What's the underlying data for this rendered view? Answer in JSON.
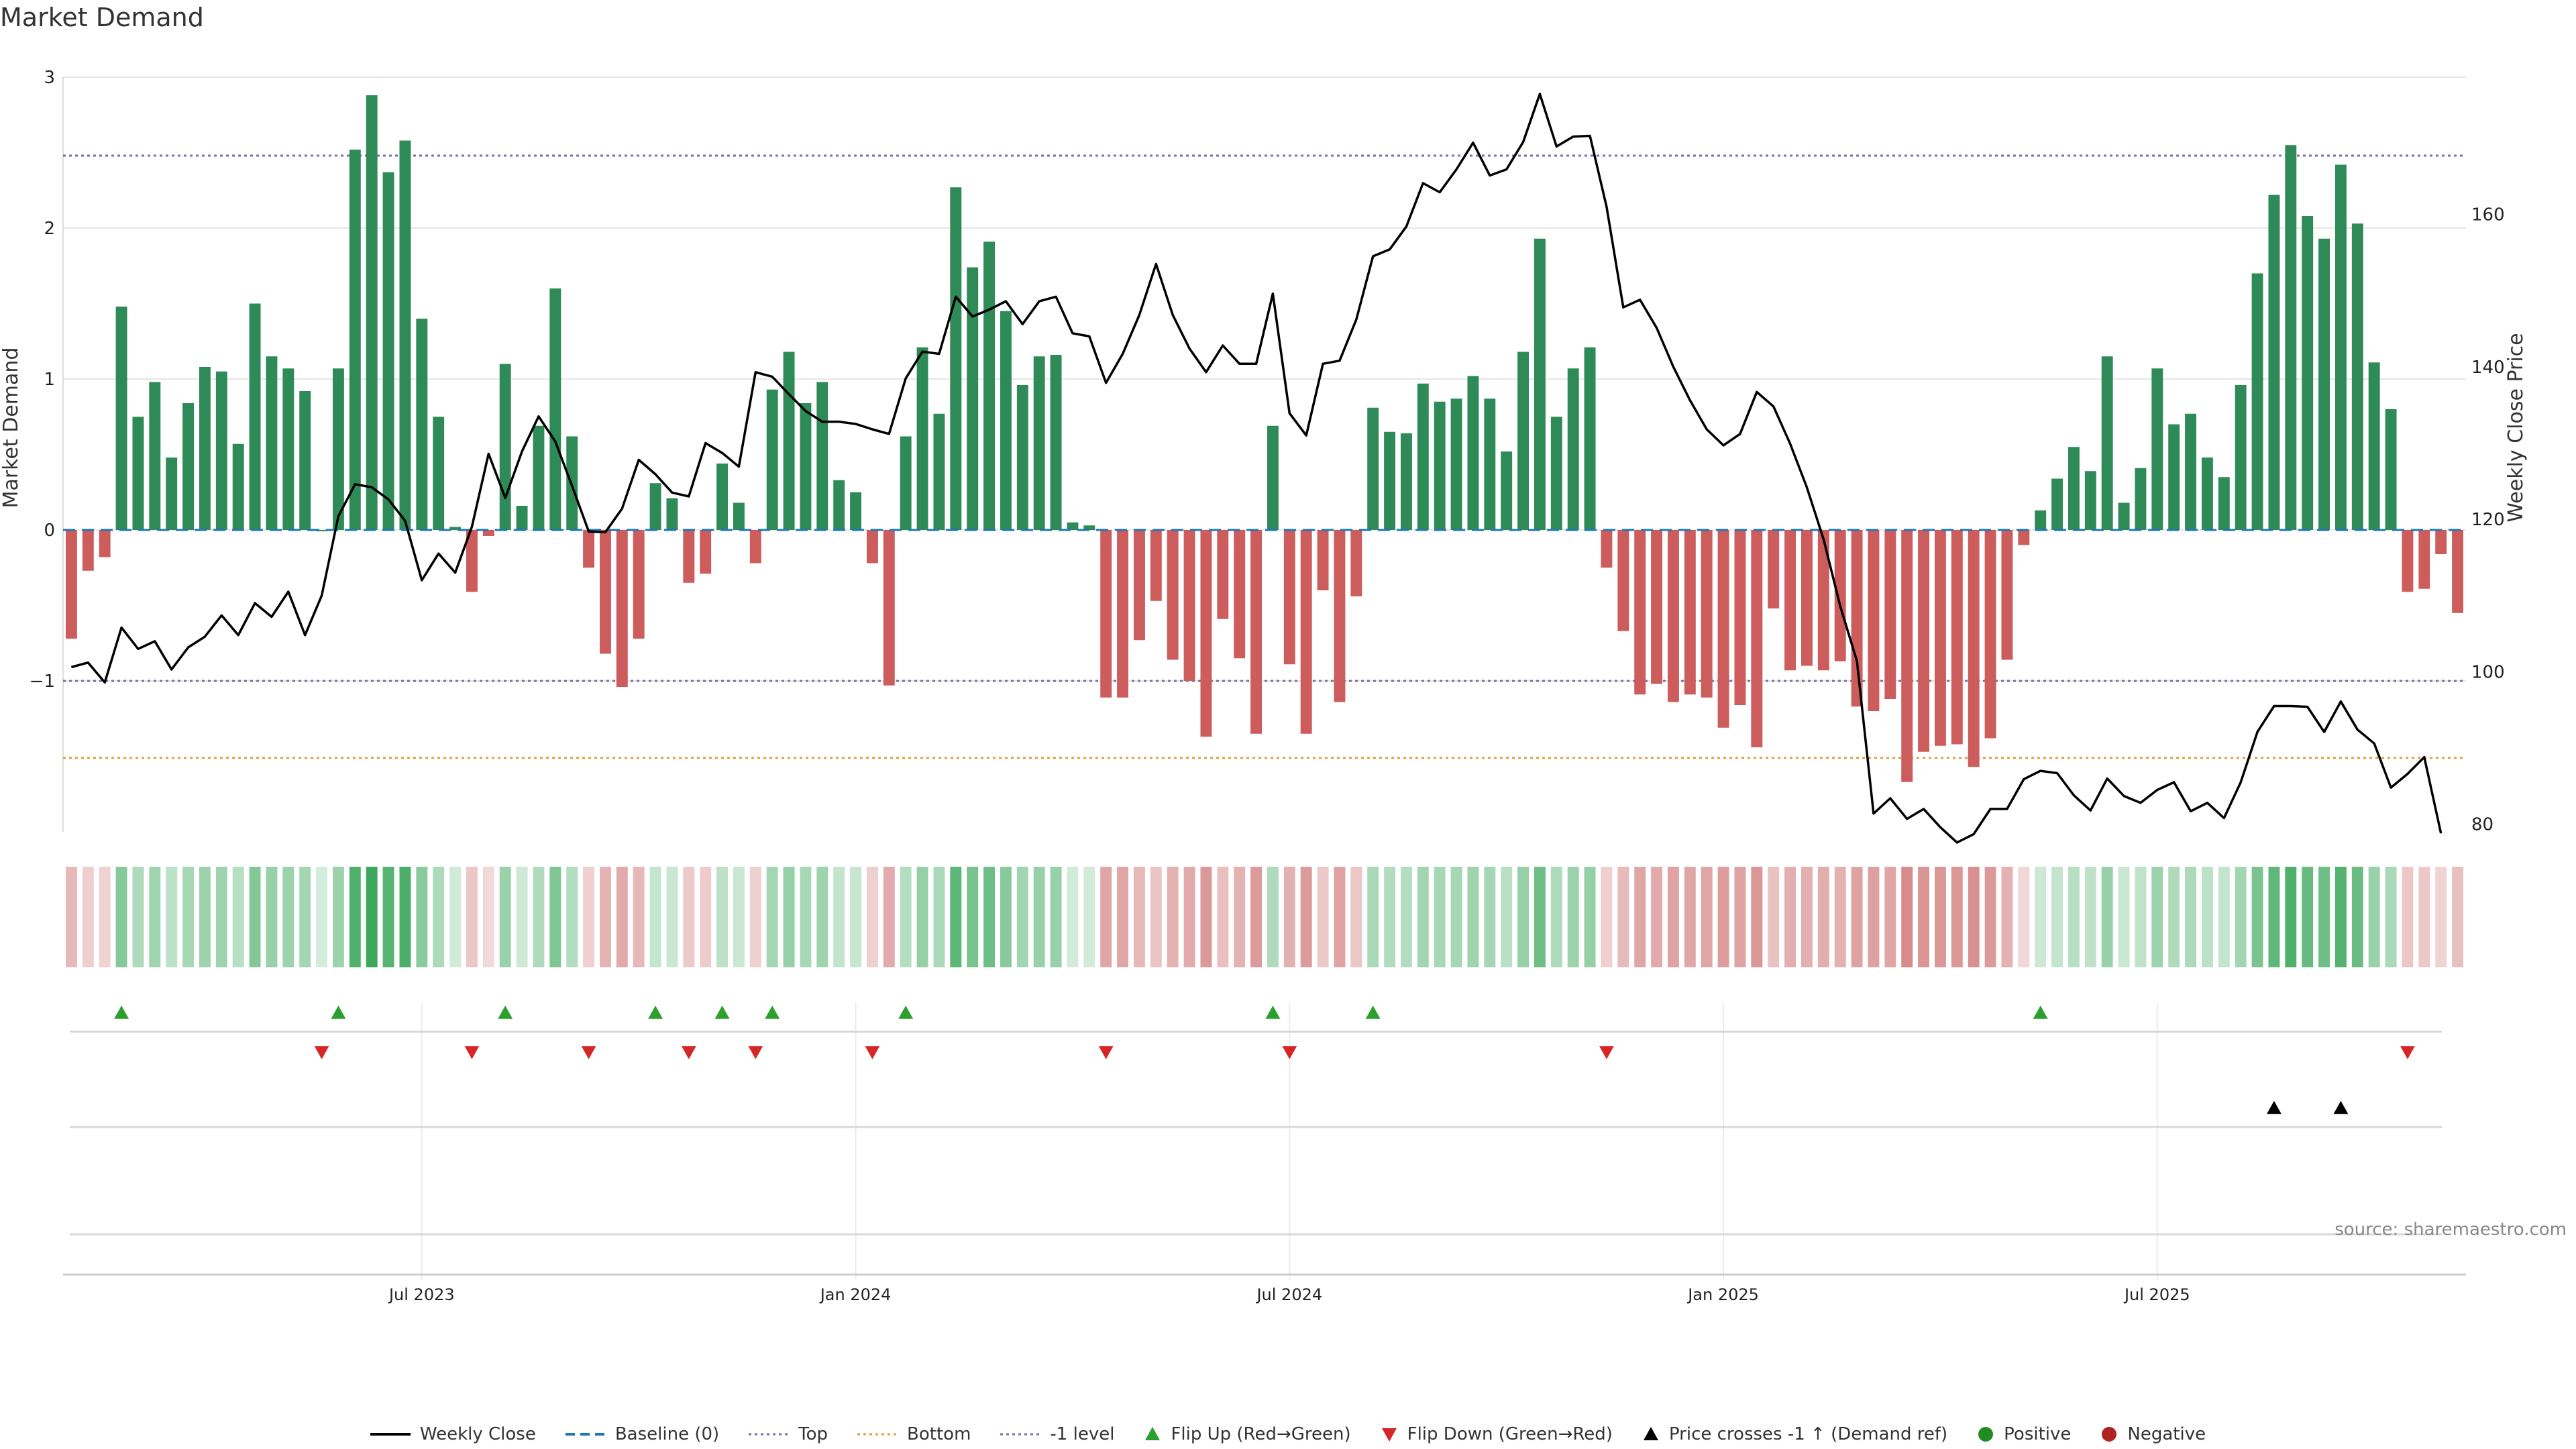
{
  "title": "Market Demand",
  "source": "source: sharemaestro.com",
  "colors": {
    "positive": "#2e8b57",
    "negative": "#cd5c5c",
    "price": "#000000",
    "top": "#7b6fa3",
    "bottom": "#e0a040",
    "minus1": "#7b6fa3",
    "baseline": "#1f77b4",
    "flip_up": "#2ca02c",
    "flip_down": "#d62728",
    "grid": "#e6e6e6"
  },
  "legend": [
    {
      "label": "Weekly Close",
      "kind": "line",
      "color": "#000000"
    },
    {
      "label": "Baseline (0)",
      "kind": "dash",
      "color": "#1f77b4"
    },
    {
      "label": "Top",
      "kind": "dot",
      "color": "#7b6fa3"
    },
    {
      "label": "Bottom",
      "kind": "dot",
      "color": "#e0a040"
    },
    {
      "label": "-1 level",
      "kind": "dot",
      "color": "#7b6fa3"
    },
    {
      "label": "Flip Up (Red→Green)",
      "kind": "tri-up",
      "color": "#2ca02c"
    },
    {
      "label": "Flip Down (Green→Red)",
      "kind": "tri-down",
      "color": "#d62728"
    },
    {
      "label": "Price crosses -1 ↑ (Demand ref)",
      "kind": "tri-up",
      "color": "#000000"
    },
    {
      "label": "Positive",
      "kind": "circle",
      "color": "#228b22"
    },
    {
      "label": "Negative",
      "kind": "circle",
      "color": "#b22222"
    }
  ],
  "chart_data": {
    "type": "bar",
    "ylabel": "Market Demand",
    "y2label": "Weekly Close Price",
    "ylim": [
      -2,
      3
    ],
    "y2lim": [
      79,
      178
    ],
    "yticks": [
      "−1",
      "0",
      "1",
      "2",
      "3"
    ],
    "y2ticks": [
      "80",
      "100",
      "120",
      "140",
      "160"
    ],
    "x_ticks": [
      {
        "label": "Jul 2023",
        "week": 21
      },
      {
        "label": "Jan 2024",
        "week": 47
      },
      {
        "label": "Jul 2024",
        "week": 73
      },
      {
        "label": "Jan 2025",
        "week": 99
      },
      {
        "label": "Jul 2025",
        "week": 125
      }
    ],
    "reference_lines": {
      "top": 2.48,
      "bottom": -1.51,
      "minus1": -1.0,
      "baseline": 0
    },
    "demand": [
      -0.72,
      -0.27,
      -0.18,
      1.48,
      0.75,
      0.98,
      0.48,
      0.84,
      1.08,
      1.05,
      0.57,
      1.5,
      1.15,
      1.07,
      0.92,
      0.0,
      1.07,
      2.52,
      2.88,
      2.37,
      2.58,
      1.4,
      0.75,
      0.02,
      -0.41,
      -0.04,
      1.1,
      0.16,
      0.69,
      1.6,
      0.62,
      -0.25,
      -0.82,
      -1.04,
      -0.72,
      0.31,
      0.21,
      -0.35,
      -0.29,
      0.44,
      0.18,
      -0.22,
      0.93,
      1.18,
      0.84,
      0.98,
      0.33,
      0.25,
      -0.22,
      -1.03,
      0.62,
      1.21,
      0.77,
      2.27,
      1.74,
      1.91,
      1.45,
      0.96,
      1.15,
      1.16,
      0.05,
      0.03,
      -1.11,
      -1.11,
      -0.73,
      -0.47,
      -0.86,
      -1.0,
      -1.37,
      -0.59,
      -0.85,
      -1.35,
      0.69,
      -0.89,
      -1.35,
      -0.4,
      -1.14,
      -0.44,
      0.81,
      0.65,
      0.64,
      0.97,
      0.85,
      0.87,
      1.02,
      0.87,
      0.52,
      1.18,
      1.93,
      0.75,
      1.07,
      1.21,
      -0.25,
      -0.67,
      -1.09,
      -1.02,
      -1.14,
      -1.09,
      -1.11,
      -1.31,
      -1.16,
      -1.44,
      -0.52,
      -0.93,
      -0.9,
      -0.93,
      -0.87,
      -1.17,
      -1.2,
      -1.12,
      -1.67,
      -1.47,
      -1.43,
      -1.42,
      -1.57,
      -1.38,
      -0.86,
      -0.1,
      0.13,
      0.34,
      0.55,
      0.39,
      1.15,
      0.18,
      0.41,
      1.07,
      0.7,
      0.77,
      0.48,
      0.35,
      0.96,
      1.7,
      2.22,
      2.55,
      2.08,
      1.93,
      2.42,
      2.03,
      1.11,
      0.8,
      -0.41,
      -0.39,
      -0.16,
      -0.55
    ],
    "weekly_close": [
      100.6,
      101.2,
      98.6,
      105.8,
      103.0,
      104.0,
      100.3,
      103.2,
      104.6,
      107.4,
      104.8,
      109.0,
      107.2,
      110.5,
      104.8,
      110.0,
      120.4,
      124.6,
      124.2,
      122.6,
      119.8,
      112.0,
      115.5,
      113.0,
      119.0,
      128.6,
      122.8,
      128.9,
      133.5,
      130.2,
      124.4,
      118.4,
      118.3,
      121.4,
      127.8,
      125.9,
      123.5,
      123.0,
      130.0,
      128.7,
      126.9,
      139.3,
      138.7,
      136.4,
      134.2,
      132.8,
      132.8,
      132.5,
      131.8,
      131.2,
      138.5,
      142.0,
      141.7,
      149.2,
      146.6,
      147.5,
      148.6,
      145.6,
      148.6,
      149.2,
      144.4,
      144.0,
      137.9,
      141.7,
      146.8,
      153.5,
      146.8,
      142.4,
      139.3,
      142.8,
      140.4,
      140.4,
      149.6,
      133.9,
      131.0,
      140.4,
      140.8,
      146.2,
      154.5,
      155.4,
      158.4,
      164.1,
      162.9,
      165.9,
      169.4,
      165.1,
      165.9,
      169.5,
      175.8,
      168.9,
      170.2,
      170.3,
      161.0,
      147.8,
      148.8,
      145.1,
      140.0,
      135.6,
      131.8,
      129.7,
      131.2,
      136.7,
      134.8,
      129.9,
      124.2,
      117.4,
      108.6,
      101.4,
      81.4,
      83.4,
      80.7,
      82.0,
      79.6,
      77.6,
      78.7,
      82.0,
      82.0,
      85.9,
      87.0,
      86.7,
      83.8,
      81.8,
      86.0,
      83.7,
      82.8,
      84.5,
      85.5,
      81.7,
      82.8,
      80.8,
      85.5,
      92.1,
      95.5,
      95.5,
      95.4,
      92.1,
      96.1,
      92.4,
      90.6,
      84.8,
      86.6,
      88.8,
      78.8
    ],
    "flip_up_weeks": [
      3,
      16,
      26,
      35,
      39,
      42,
      50,
      72,
      78,
      118
    ],
    "flip_down_weeks": [
      15,
      24,
      31,
      37,
      41,
      48,
      62,
      73,
      92,
      140
    ],
    "price_cross_weeks": [
      132,
      136
    ]
  }
}
